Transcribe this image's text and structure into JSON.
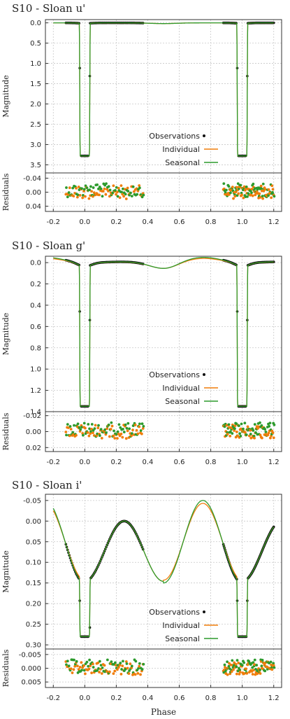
{
  "chart_data": [
    {
      "type": "line",
      "title": "S10 - Sloan u'",
      "xlabel": "",
      "ylabel": "Magnitude",
      "residuals_label": "Residuals",
      "xlim": [
        -0.25,
        1.25
      ],
      "ylim": [
        -0.08,
        3.7
      ],
      "y_inverted": true,
      "yticks": [
        "0.0",
        "0.5",
        "1.0",
        "1.5",
        "2.0",
        "2.5",
        "3.0",
        "3.5"
      ],
      "yticks_values": [
        0.0,
        0.5,
        1.0,
        1.5,
        2.0,
        2.5,
        3.0,
        3.5
      ],
      "res_ylim": [
        -0.055,
        0.055
      ],
      "res_yticks": [
        "-0.04",
        "0.00",
        "0.04"
      ],
      "res_yticks_values": [
        -0.04,
        0.0,
        0.04
      ],
      "xticks": [
        "-0.2",
        "0.0",
        "0.2",
        "0.4",
        "0.6",
        "0.8",
        "1.0",
        "1.2"
      ],
      "xticks_values": [
        -0.2,
        0.0,
        0.2,
        0.4,
        0.6,
        0.8,
        1.0,
        1.2
      ],
      "grid": true,
      "legend_position": "bottom-center",
      "legend": [
        "Observations",
        "Individual",
        "Seasonal"
      ],
      "model": {
        "depth": 3.28,
        "width": 0.034,
        "ingress": 0.004,
        "refl_top": 0.0,
        "refl_mid": 0.02,
        "secondary": 0.0
      },
      "show_xlabels": false
    },
    {
      "type": "line",
      "title": "S10 - Sloan g'",
      "xlabel": "",
      "ylabel": "Magnitude",
      "residuals_label": "Residuals",
      "xlim": [
        -0.25,
        1.25
      ],
      "ylim": [
        -0.06,
        1.4
      ],
      "y_inverted": true,
      "yticks": [
        "0.0",
        "0.2",
        "0.4",
        "0.6",
        "0.8",
        "1.0",
        "1.2",
        "1.4"
      ],
      "yticks_values": [
        0.0,
        0.2,
        0.4,
        0.6,
        0.8,
        1.0,
        1.2,
        1.4
      ],
      "res_ylim": [
        -0.025,
        0.025
      ],
      "res_yticks": [
        "-0.02",
        "0.00",
        "0.02"
      ],
      "res_yticks_values": [
        -0.02,
        0.0,
        0.02
      ],
      "xticks": [
        "-0.2",
        "0.0",
        "0.2",
        "0.4",
        "0.6",
        "0.8",
        "1.0",
        "1.2"
      ],
      "xticks_values": [
        -0.2,
        0.0,
        0.2,
        0.4,
        0.6,
        0.8,
        1.0,
        1.2
      ],
      "grid": true,
      "legend_position": "bottom-center",
      "legend": [
        "Observations",
        "Individual",
        "Seasonal"
      ],
      "model": {
        "depth": 1.35,
        "width": 0.034,
        "ingress": 0.004,
        "refl_top": 0.0,
        "refl_mid": 0.06,
        "secondary": 0.05
      },
      "show_xlabels": false
    },
    {
      "type": "line",
      "title": "S10 - Sloan i'",
      "xlabel": "Phase",
      "ylabel": "Magnitude",
      "residuals_label": "Residuals",
      "xlim": [
        -0.25,
        1.25
      ],
      "ylim": [
        -0.065,
        0.31
      ],
      "y_inverted": true,
      "yticks": [
        "-0.05",
        "0.00",
        "0.05",
        "0.10",
        "0.15",
        "0.20",
        "0.25",
        "0.30"
      ],
      "yticks_values": [
        -0.05,
        0.0,
        0.05,
        0.1,
        0.15,
        0.2,
        0.25,
        0.3
      ],
      "res_ylim": [
        -0.007,
        0.007
      ],
      "res_yticks": [
        "-0.005",
        "0.000",
        "0.005"
      ],
      "res_yticks_values": [
        -0.005,
        0.0,
        0.005
      ],
      "xticks": [
        "-0.2",
        "0.0",
        "0.2",
        "0.4",
        "0.6",
        "0.8",
        "1.0",
        "1.2"
      ],
      "xticks_values": [
        -0.2,
        0.0,
        0.2,
        0.4,
        0.6,
        0.8,
        1.0,
        1.2
      ],
      "grid": true,
      "legend_position": "bottom-center",
      "legend": [
        "Observations",
        "Individual",
        "Seasonal"
      ],
      "model": {
        "depth": 0.285,
        "width": 0.034,
        "ingress": 0.004,
        "sine": true
      },
      "show_xlabels": true
    }
  ],
  "colors": {
    "observations": "#111111",
    "individual": "#f07d0a",
    "seasonal": "#2c9a2c",
    "grid": "#c8c8c8"
  }
}
